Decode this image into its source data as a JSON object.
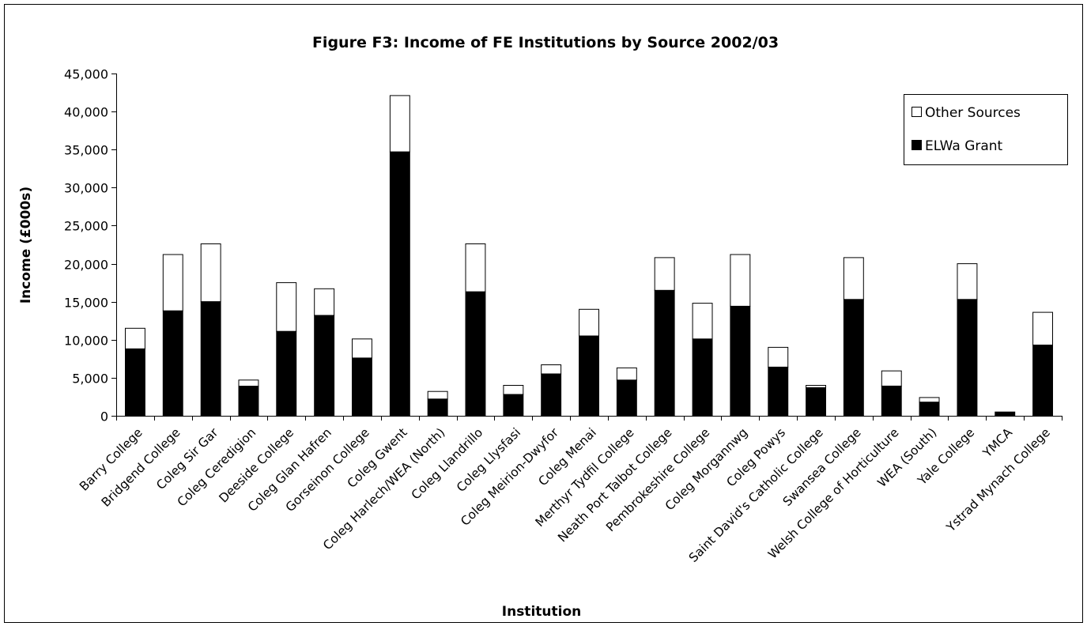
{
  "chart_data": {
    "type": "bar",
    "stacked": true,
    "title": "Figure F3: Income of FE Institutions by Source 2002/03",
    "xlabel": "Institution",
    "ylabel": "Income (£000s)",
    "ylim": [
      0,
      45000
    ],
    "ytick_step": 5000,
    "ytick_labels": [
      "0",
      "5,000",
      "10,000",
      "15,000",
      "20,000",
      "25,000",
      "30,000",
      "35,000",
      "40,000",
      "45,000"
    ],
    "grid": false,
    "legend_position": "top-right",
    "categories": [
      "Barry College",
      "Bridgend College",
      "Coleg Sir Gar",
      "Coleg Ceredigion",
      "Deeside College",
      "Coleg Glan Hafren",
      "Gorseinon College",
      "Coleg Gwent",
      "Coleg Harlech/WEA (North)",
      "Coleg Llandrillo",
      "Coleg Llysfasi",
      "Coleg Meirion-Dwyfor",
      "Coleg Menai",
      "Merthyr Tydfil College",
      "Neath Port Talbot College",
      "Pembrokeshire College",
      "Coleg Morgannwg",
      "Coleg Powys",
      "Saint David's Catholic College",
      "Swansea College",
      "Welsh College of Horticulture",
      "WEA (South)",
      "Yale College",
      "YMCA",
      "Ystrad Mynach College"
    ],
    "series": [
      {
        "name": "ELWa Grant",
        "color": "#000000",
        "values": [
          8800,
          13800,
          15000,
          3900,
          11100,
          13200,
          7600,
          34700,
          2200,
          16300,
          2800,
          5500,
          10500,
          4700,
          16500,
          10100,
          14400,
          6400,
          3700,
          15300,
          3900,
          1800,
          15300,
          500,
          9300
        ]
      },
      {
        "name": "Other Sources",
        "color": "#ffffff",
        "values": [
          2700,
          7400,
          7600,
          800,
          6400,
          3500,
          2500,
          7400,
          1000,
          6300,
          1200,
          1200,
          3500,
          1600,
          4300,
          4700,
          6800,
          2600,
          300,
          5500,
          2000,
          600,
          4700,
          0,
          4300
        ]
      }
    ],
    "legend": [
      {
        "label": "Other Sources",
        "color": "#ffffff"
      },
      {
        "label": "ELWa Grant",
        "color": "#000000"
      }
    ]
  }
}
